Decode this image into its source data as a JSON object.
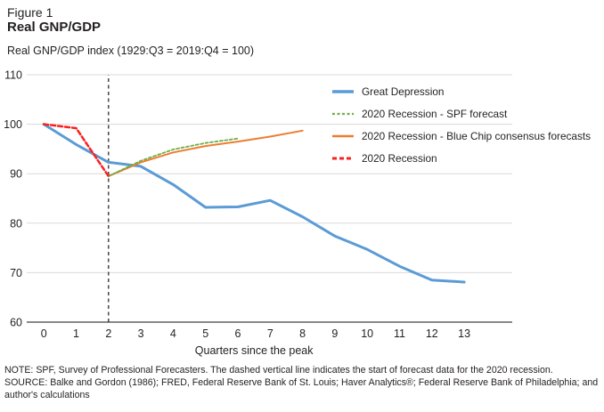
{
  "figure": {
    "label": "Figure 1",
    "title": "Real GNP/GDP",
    "y_axis_caption": "Real GNP/GDP index (1929:Q3 = 2019:Q4 = 100)"
  },
  "notes": {
    "note_line": "NOTE: SPF, Survey of Professional Forecasters. The dashed vertical line indicates the start of forecast data for the 2020 recession.",
    "source_line": "SOURCE: Balke and Gordon (1986); FRED, Federal Reserve Bank of St. Louis; Haver Analytics®; Federal Reserve Bank of Philadelphia; and author's calculations"
  },
  "colors": {
    "gridline": "#d9d9d9",
    "axis": "#404040",
    "text": "#231f20",
    "great_depression": "#5b9bd5",
    "spf_forecast": "#70ad47",
    "blue_chip": "#ed7d31",
    "recession_2020": "#fb2020",
    "vline": "#2b2b2b"
  },
  "chart_data": {
    "type": "line",
    "xlabel": "Quarters since the peak",
    "ylabel": "Real GNP/GDP index (1929:Q3 = 2019:Q4 = 100)",
    "xlim": [
      -0.5,
      14.5
    ],
    "ylim": [
      60,
      110
    ],
    "xticks": [
      0,
      1,
      2,
      3,
      4,
      5,
      6,
      7,
      8,
      9,
      10,
      11,
      12,
      13
    ],
    "yticks": [
      60,
      70,
      80,
      90,
      100,
      110
    ],
    "grid": "horizontal",
    "legend_position": "top-right",
    "vline": {
      "x": 2,
      "style": "dashed",
      "color": "#2b2b2b",
      "meaning": "start of forecast data for the 2020 recession"
    },
    "draw_order": [
      0,
      2,
      1,
      3
    ],
    "series": [
      {
        "id": "great-depression",
        "name": "Great Depression",
        "color": "#5b9bd5",
        "style": "solid",
        "dash": "",
        "width": 3,
        "x": [
          0,
          1,
          2,
          3,
          4,
          5,
          6,
          7,
          8,
          9,
          10,
          11,
          12,
          13
        ],
        "y": [
          100,
          95.9,
          92.3,
          91.5,
          87.8,
          83.2,
          83.3,
          84.6,
          81.3,
          77.4,
          74.7,
          71.3,
          68.5,
          68.1
        ]
      },
      {
        "id": "spf-forecast",
        "name": "2020 Recession - SPF forecast",
        "color": "#70ad47",
        "style": "dashed",
        "dash": "3 2.5",
        "width": 1.8,
        "x": [
          2,
          3,
          4,
          5,
          6
        ],
        "y": [
          89.5,
          92.6,
          94.9,
          96.2,
          97.1
        ]
      },
      {
        "id": "blue-chip",
        "name": "2020 Recession - Blue Chip consensus forecasts",
        "color": "#ed7d31",
        "style": "solid",
        "dash": "",
        "width": 2,
        "x": [
          2,
          3,
          4,
          5,
          6,
          7,
          8
        ],
        "y": [
          89.5,
          92.3,
          94.3,
          95.6,
          96.5,
          97.5,
          98.7
        ]
      },
      {
        "id": "2020-recession",
        "name": "2020 Recession",
        "color": "#fb2020",
        "style": "dashed",
        "dash": "5 3",
        "width": 2.5,
        "x": [
          0,
          1,
          2
        ],
        "y": [
          100,
          99.2,
          89.5
        ]
      }
    ]
  }
}
